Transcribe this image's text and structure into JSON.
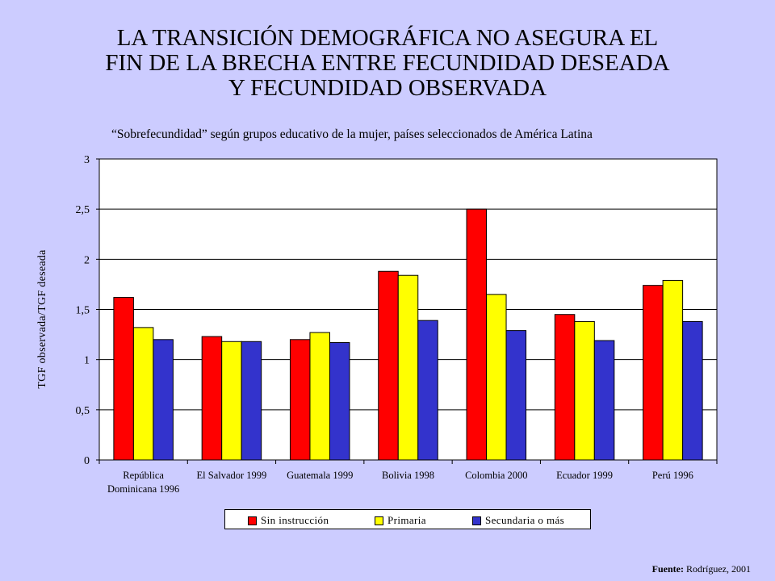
{
  "title_lines": [
    "LA TRANSICIÓN DEMOGRÁFICA NO ASEGURA EL",
    "FIN DE LA BRECHA ENTRE FECUNDIDAD DESEADA",
    "Y FECUNDIDAD OBSERVADA"
  ],
  "subtitle": "“Sobrefecundidad” según grupos educativo de la mujer, países seleccionados de América Latina",
  "source": {
    "label": "Fuente:",
    "text": "Rodríguez, 2001"
  },
  "colors": {
    "sin": "#ff0000",
    "primaria": "#ffff00",
    "secundaria": "#3333cc"
  },
  "chart_data": {
    "type": "bar",
    "ylabel": "TGF observada/TGF deseada",
    "ylim": [
      0,
      3
    ],
    "yticks": [
      "0",
      "0,5",
      "1",
      "1,5",
      "2",
      "2,5",
      "3"
    ],
    "grid": true,
    "legend_position": "bottom",
    "categories": [
      [
        "República",
        "Dominicana 1996"
      ],
      [
        "El Salvador 1999"
      ],
      [
        "Guatemala 1999"
      ],
      [
        "Bolivia 1998"
      ],
      [
        "Colombia 2000"
      ],
      [
        "Ecuador 1999"
      ],
      [
        "Perú 1996"
      ]
    ],
    "series": [
      {
        "name": "Sin instrucción",
        "values": [
          1.62,
          1.23,
          1.2,
          1.88,
          2.5,
          1.45,
          1.74
        ]
      },
      {
        "name": "Primaria",
        "values": [
          1.32,
          1.18,
          1.27,
          1.84,
          1.65,
          1.38,
          1.79
        ]
      },
      {
        "name": "Secundaria o más",
        "values": [
          1.2,
          1.18,
          1.17,
          1.39,
          1.29,
          1.19,
          1.38
        ]
      }
    ]
  }
}
